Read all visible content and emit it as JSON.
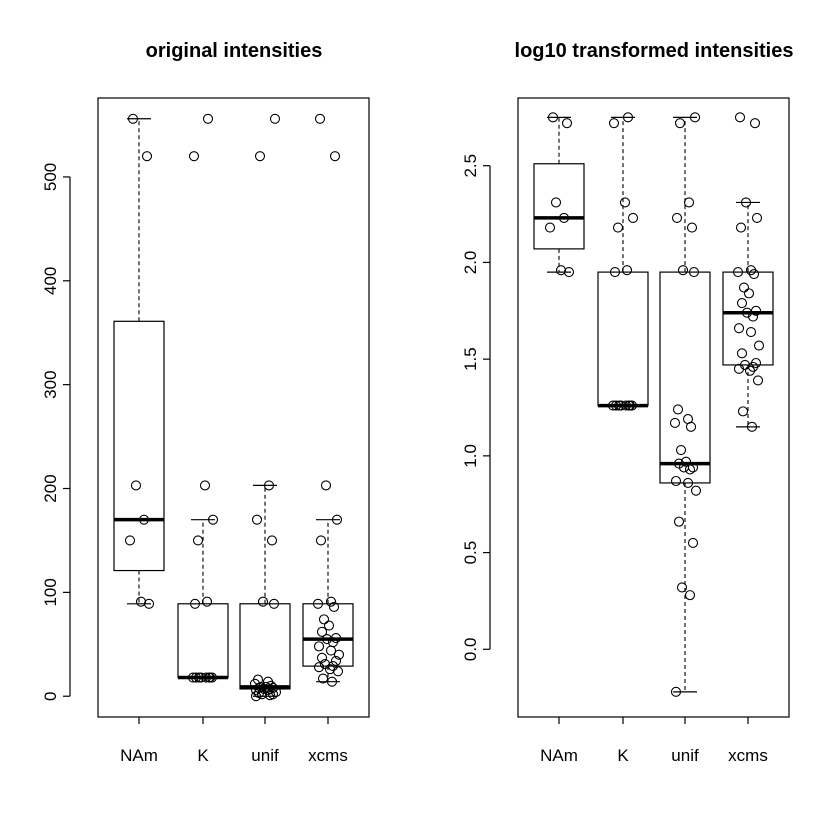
{
  "chart_data": [
    {
      "type": "boxplot",
      "title": "original intensities",
      "xlabel": "",
      "ylabel": "",
      "categories": [
        "NAm",
        "K",
        "unif",
        "xcms"
      ],
      "ylim": [
        -20,
        576
      ],
      "yticks": [
        0,
        100,
        200,
        300,
        400,
        500
      ],
      "boxes": [
        {
          "whisker_low": 89,
          "q1": 121,
          "median": 170,
          "q3": 361,
          "whisker_high": 556
        },
        {
          "whisker_low": 18,
          "q1": 18,
          "median": 18,
          "q3": 89,
          "whisker_high": 170
        },
        {
          "whisker_low": 0,
          "q1": 7,
          "median": 9,
          "q3": 89,
          "whisker_high": 203
        },
        {
          "whisker_low": 14,
          "q1": 29,
          "median": 55,
          "q3": 89,
          "whisker_high": 170
        }
      ],
      "points": [
        [
          556,
          520,
          203,
          170,
          150,
          91,
          89
        ],
        [
          556,
          520,
          203,
          170,
          150,
          91,
          89,
          18,
          18,
          18,
          18,
          18,
          18,
          18,
          18
        ],
        [
          556,
          520,
          203,
          170,
          150,
          91,
          89,
          16,
          14,
          12,
          10,
          9,
          9,
          8,
          8,
          7,
          7,
          6,
          6,
          4,
          3,
          2,
          2,
          1,
          0
        ],
        [
          556,
          520,
          203,
          170,
          150,
          91,
          89,
          86,
          74,
          68,
          62,
          56,
          55,
          52,
          48,
          44,
          40,
          37,
          34,
          31,
          29,
          28,
          26,
          24,
          17,
          14
        ]
      ]
    },
    {
      "type": "boxplot",
      "title": "log10 transformed intensities",
      "xlabel": "",
      "ylabel": "",
      "categories": [
        "NAm",
        "K",
        "unif",
        "xcms"
      ],
      "ylim": [
        -0.35,
        2.85
      ],
      "yticks": [
        0.0,
        0.5,
        1.0,
        1.5,
        2.0,
        2.5
      ],
      "ytick_labels": [
        "0.0",
        "0.5",
        "1.0",
        "1.5",
        "2.0",
        "2.5"
      ],
      "boxes": [
        {
          "whisker_low": 1.95,
          "q1": 2.07,
          "median": 2.23,
          "q3": 2.51,
          "whisker_high": 2.75
        },
        {
          "whisker_low": 1.26,
          "q1": 1.26,
          "median": 1.26,
          "q3": 1.95,
          "whisker_high": 2.75
        },
        {
          "whisker_low": -0.22,
          "q1": 0.86,
          "median": 0.96,
          "q3": 1.95,
          "whisker_high": 2.75
        },
        {
          "whisker_low": 1.15,
          "q1": 1.47,
          "median": 1.74,
          "q3": 1.95,
          "whisker_high": 2.31
        }
      ],
      "points": [
        [
          2.75,
          2.72,
          2.31,
          2.23,
          2.18,
          1.96,
          1.95
        ],
        [
          2.75,
          2.72,
          2.31,
          2.23,
          2.18,
          1.96,
          1.95,
          1.26,
          1.26,
          1.26,
          1.26,
          1.26,
          1.26,
          1.26,
          1.26
        ],
        [
          2.75,
          2.72,
          2.31,
          2.23,
          2.18,
          1.96,
          1.95,
          1.24,
          1.19,
          1.17,
          1.15,
          1.03,
          0.97,
          0.96,
          0.94,
          0.94,
          0.93,
          0.87,
          0.86,
          0.82,
          0.66,
          0.55,
          0.32,
          0.28,
          -0.22
        ],
        [
          2.75,
          2.72,
          2.31,
          2.23,
          2.18,
          1.96,
          1.95,
          1.94,
          1.87,
          1.84,
          1.79,
          1.75,
          1.74,
          1.72,
          1.66,
          1.64,
          1.57,
          1.53,
          1.48,
          1.47,
          1.46,
          1.45,
          1.44,
          1.39,
          1.23,
          1.15
        ]
      ]
    }
  ]
}
